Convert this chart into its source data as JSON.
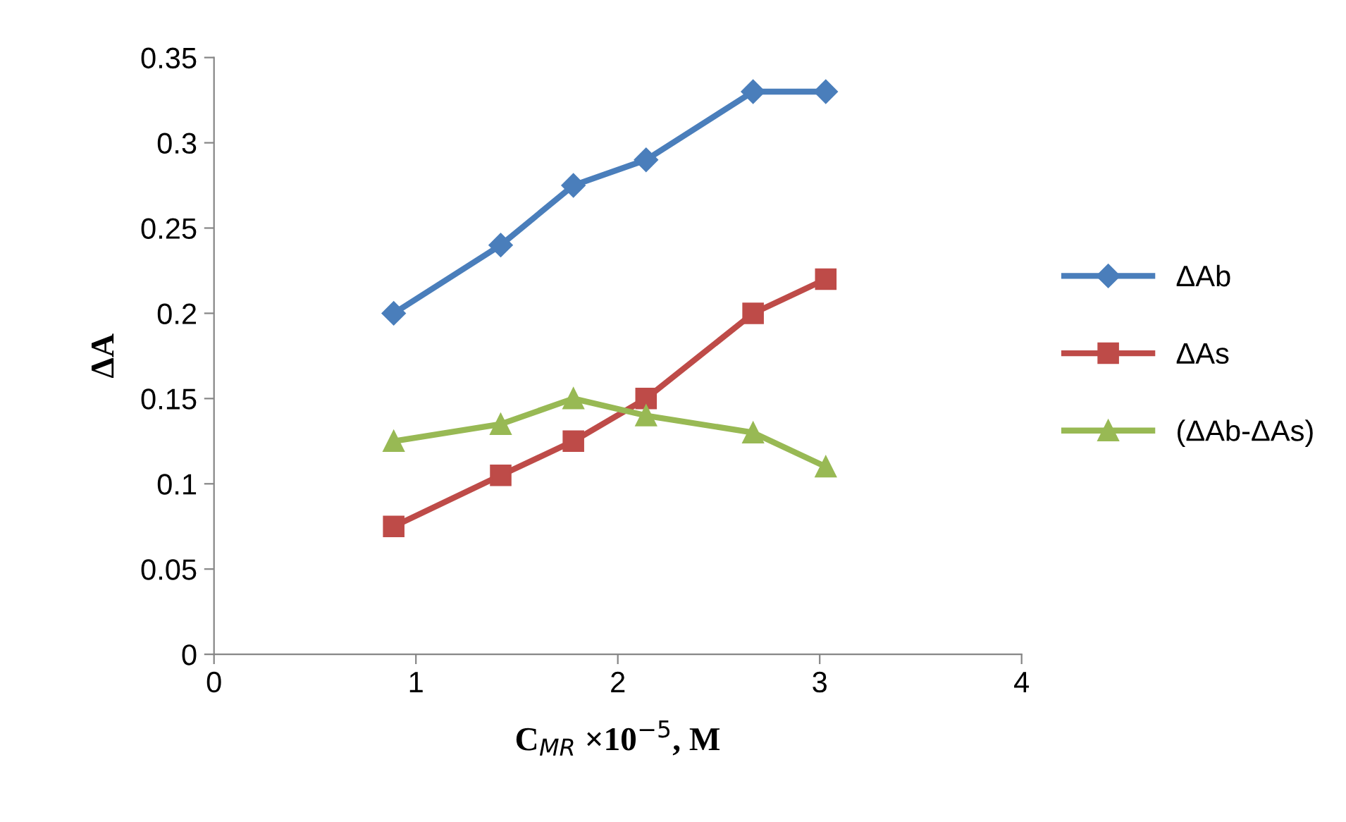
{
  "chart_data": {
    "type": "line",
    "xlabel": "C$_{MR}$ ×10$^{−5}$, M",
    "ylabel": "ΔA",
    "x": [
      0.89,
      1.42,
      1.78,
      2.14,
      2.67,
      3.03
    ],
    "series": [
      {
        "name": "ΔAb",
        "color": "#4a7ebb",
        "marker": "diamond",
        "values": [
          0.2,
          0.24,
          0.275,
          0.29,
          0.33,
          0.33
        ]
      },
      {
        "name": "ΔAs",
        "color": "#be4b48",
        "marker": "square",
        "values": [
          0.075,
          0.105,
          0.125,
          0.15,
          0.2,
          0.22
        ]
      },
      {
        "name": "(ΔAb-ΔAs)",
        "color": "#98b954",
        "marker": "triangle",
        "values": [
          0.125,
          0.135,
          0.15,
          0.14,
          0.13,
          0.11
        ]
      }
    ],
    "xlim": [
      0,
      4
    ],
    "xticks": [
      0,
      1,
      2,
      3,
      4
    ],
    "ylim": [
      0,
      0.35
    ],
    "yticks": [
      0,
      0.05,
      0.1,
      0.15,
      0.2,
      0.25,
      0.3,
      0.35
    ],
    "grid": false,
    "legend": "right",
    "line_style": "solid"
  }
}
